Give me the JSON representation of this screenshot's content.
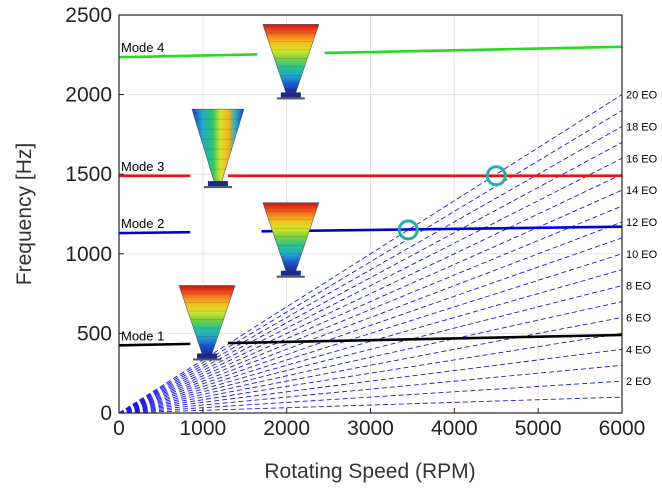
{
  "chart_data": {
    "type": "line",
    "title": "",
    "xlabel": "Rotating Speed (RPM)",
    "ylabel": "Frequency [Hz]",
    "xlim": [
      0,
      6000
    ],
    "ylim": [
      0,
      2500
    ],
    "xticks": [
      0,
      1000,
      2000,
      3000,
      4000,
      5000,
      6000
    ],
    "yticks": [
      0,
      500,
      1000,
      1500,
      2000,
      2500
    ],
    "xtick_labels": [
      "0",
      "1000",
      "2000",
      "3000",
      "4000",
      "5000",
      "6000"
    ],
    "ytick_labels": [
      "0",
      "500",
      "1000",
      "1500",
      "2000",
      "2500"
    ],
    "grid": true,
    "modes": [
      {
        "name": "Mode 1",
        "color": "#000000",
        "x": [
          0,
          6000
        ],
        "y": [
          425,
          490
        ],
        "gap": [
          850,
          1300
        ]
      },
      {
        "name": "Mode 2",
        "color": "#0000dd",
        "x": [
          0,
          6000
        ],
        "y": [
          1130,
          1170
        ],
        "gap": [
          850,
          1700
        ]
      },
      {
        "name": "Mode 3",
        "color": "#ee1111",
        "x": [
          0,
          6000
        ],
        "y": [
          1490,
          1490
        ],
        "gap": [
          850,
          1300
        ]
      },
      {
        "name": "Mode 4",
        "color": "#22dd22",
        "x": [
          0,
          6000
        ],
        "y": [
          2235,
          2300
        ],
        "gap": [
          1650,
          2450
        ]
      }
    ],
    "engine_orders": {
      "color": "#1a1adf",
      "orders": [
        1,
        2,
        3,
        4,
        5,
        6,
        7,
        8,
        9,
        10,
        11,
        12,
        13,
        14,
        15,
        16,
        17,
        18,
        19,
        20
      ],
      "labels": [
        {
          "order": 2,
          "text": "2 EO"
        },
        {
          "order": 4,
          "text": "4 EO"
        },
        {
          "order": 6,
          "text": "6 EO"
        },
        {
          "order": 8,
          "text": "8 EO"
        },
        {
          "order": 10,
          "text": "10 EO"
        },
        {
          "order": 12,
          "text": "12 EO"
        },
        {
          "order": 14,
          "text": "14 EO"
        },
        {
          "order": 16,
          "text": "16 EO"
        },
        {
          "order": 18,
          "text": "18 EO"
        },
        {
          "order": 20,
          "text": "20 EO"
        }
      ]
    },
    "crossings": [
      {
        "x": 3450,
        "y": 1150,
        "color": "#22b0a8"
      },
      {
        "x": 4500,
        "y": 1490,
        "color": "#22b0a8"
      }
    ],
    "mode_shapes": [
      {
        "mode": "Mode 1",
        "cx": 1050,
        "cy": 600
      },
      {
        "mode": "Mode 2",
        "cx": 2050,
        "cy": 1120
      },
      {
        "mode": "Mode 3",
        "cx": 1180,
        "cy": 1620
      },
      {
        "mode": "Mode 4",
        "cx": 2050,
        "cy": 2240
      }
    ]
  }
}
